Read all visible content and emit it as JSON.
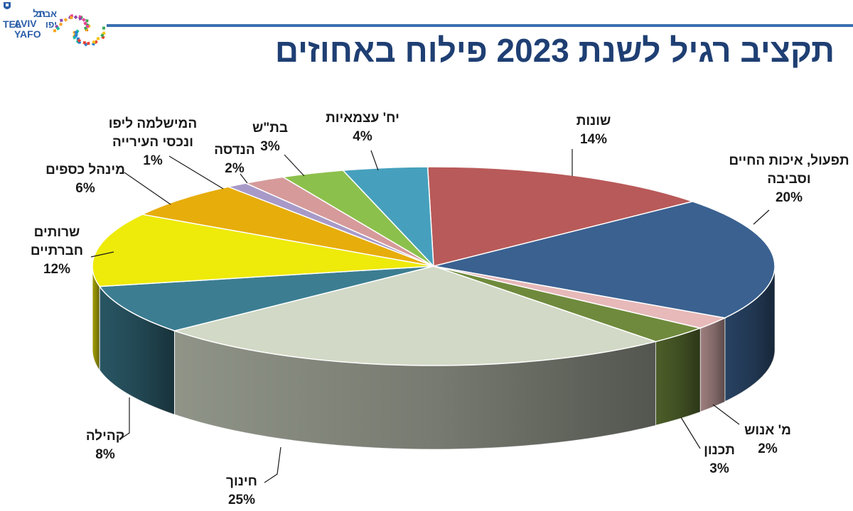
{
  "logo": {
    "lines": [
      "תל",
      "אביב",
      "יפו"
    ],
    "latin": [
      "TEL",
      "AVIV",
      "YAFO"
    ]
  },
  "page_title": "תקציב רגיל לשנת 2023 פילוח באחוזים",
  "colors": {
    "title": "#1f3f73",
    "rule": "#3b6fb0"
  },
  "chart_data": {
    "type": "pie",
    "title": "תקציב רגיל לשנת 2023 פילוח באחוזים",
    "unit": "%",
    "slices": [
      {
        "label": "שונות",
        "lines": [
          "שונות"
        ],
        "percent_label": "14%",
        "value": 14,
        "color": "#b85a59"
      },
      {
        "label": "תפעול, איכות החיים וסביבה",
        "lines": [
          "תפעול, איכות החיים",
          "וסביבה"
        ],
        "percent_label": "20%",
        "value": 20,
        "color": "#3a6190"
      },
      {
        "label": "מ' אנוש",
        "lines": [
          "מ' אנוש"
        ],
        "percent_label": "2%",
        "value": 2,
        "color": "#e7b9b9"
      },
      {
        "label": "תכנון",
        "lines": [
          "תכנון"
        ],
        "percent_label": "3%",
        "value": 3,
        "color": "#6f8a3c"
      },
      {
        "label": "חינוך",
        "lines": [
          "חינוך"
        ],
        "percent_label": "25%",
        "value": 25,
        "color": "#d2d9c6"
      },
      {
        "label": "קהילה",
        "lines": [
          "קהילה"
        ],
        "percent_label": "8%",
        "value": 8,
        "color": "#3c7d92"
      },
      {
        "label": "שרותים חברתיים",
        "lines": [
          "שרותים",
          "חברתיים"
        ],
        "percent_label": "12%",
        "value": 12,
        "color": "#eeea0a"
      },
      {
        "label": "מינהל כספים",
        "lines": [
          "מינהל כספים"
        ],
        "percent_label": "6%",
        "value": 6,
        "color": "#e7ad0b"
      },
      {
        "label": "המישלמה ליפו ונכסי העירייה",
        "lines": [
          "המישלמה ליפו",
          "ונכסי העירייה"
        ],
        "percent_label": "1%",
        "value": 1,
        "color": "#a79ac8"
      },
      {
        "label": "הנדסה",
        "lines": [
          "הנדסה"
        ],
        "percent_label": "2%",
        "value": 2,
        "color": "#d69a9a"
      },
      {
        "label": "בת\"ש",
        "lines": [
          "בת\"ש"
        ],
        "percent_label": "3%",
        "value": 3,
        "color": "#8cc04c"
      },
      {
        "label": "יח' עצמאיות",
        "lines": [
          "יח' עצמאיות"
        ],
        "percent_label": "4%",
        "value": 4,
        "color": "#46a0bd"
      }
    ]
  }
}
